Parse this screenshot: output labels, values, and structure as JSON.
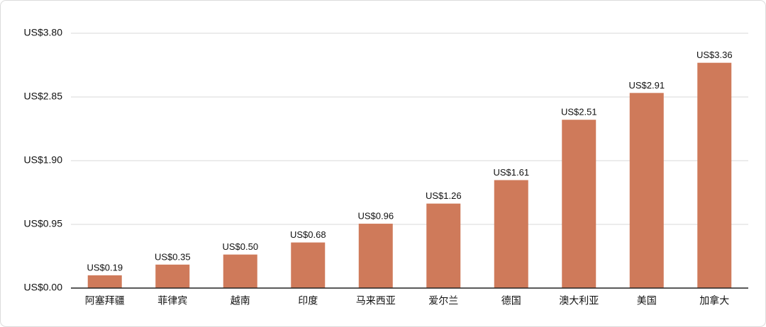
{
  "chart_data": {
    "type": "bar",
    "categories": [
      "阿塞拜疆",
      "菲律宾",
      "越南",
      "印度",
      "马来西亚",
      "爱尔兰",
      "德国",
      "澳大利亚",
      "美国",
      "加拿大"
    ],
    "values": [
      0.19,
      0.35,
      0.5,
      0.68,
      0.96,
      1.26,
      1.61,
      2.51,
      2.91,
      3.36
    ],
    "value_labels": [
      "US$0.19",
      "US$0.35",
      "US$0.50",
      "US$0.68",
      "US$0.96",
      "US$1.26",
      "US$1.61",
      "US$2.51",
      "US$2.91",
      "US$3.36"
    ],
    "color": "#cf7a5a",
    "ylim": [
      0,
      3.8
    ],
    "yticks": [
      {
        "value": 0,
        "label": "US$0.00"
      },
      {
        "value": 0.95,
        "label": "US$0.95"
      },
      {
        "value": 1.9,
        "label": "US$1.90"
      },
      {
        "value": 2.85,
        "label": "US$2.85"
      },
      {
        "value": 3.8,
        "label": "US$3.80"
      }
    ],
    "grid": true
  }
}
